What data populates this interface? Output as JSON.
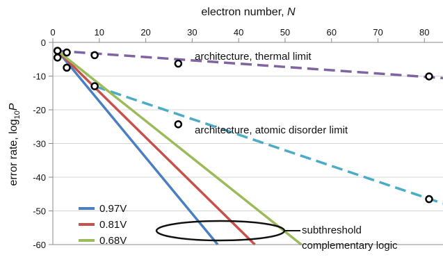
{
  "chart_data": {
    "type": "line",
    "xlabel_text": "electron number, ",
    "xlabel_var": "N",
    "ylabel_text": "error rate, log",
    "ylabel_sub": "10",
    "ylabel_var": "P",
    "xlim": [
      0,
      84
    ],
    "ylim": [
      -60,
      0
    ],
    "x_ticks": [
      0,
      10,
      20,
      30,
      40,
      50,
      60,
      70,
      80
    ],
    "y_ticks": [
      0,
      -10,
      -20,
      -30,
      -40,
      -50,
      -60
    ],
    "grid": "horizontal",
    "legend_position": "bottom-left",
    "series": [
      {
        "name": "0.97V",
        "color": "#4a7fc1",
        "style": "solid",
        "x": [
          1,
          35.5
        ],
        "y": [
          -2.5,
          -60
        ]
      },
      {
        "name": "0.81V",
        "color": "#c8504a",
        "style": "solid",
        "x": [
          1,
          43.5
        ],
        "y": [
          -2.5,
          -60
        ]
      },
      {
        "name": "0.68V",
        "color": "#9bbb59",
        "style": "solid",
        "x": [
          1,
          53.5
        ],
        "y": [
          -2.5,
          -60
        ]
      }
    ],
    "limits": [
      {
        "label": "architecture, thermal limit",
        "color": "#8064a2",
        "style": "dashed",
        "x": [
          1,
          84
        ],
        "y": [
          -2.5,
          -10.6
        ]
      },
      {
        "label": "architecture, atomic disorder limit",
        "color": "#4bacc6",
        "style": "dashed",
        "x": [
          9,
          84
        ],
        "y": [
          -13,
          -47.8
        ]
      }
    ],
    "markers": {
      "style": "open-circle",
      "points": [
        {
          "x": 1,
          "y": -2.5
        },
        {
          "x": 1,
          "y": -4.5
        },
        {
          "x": 3,
          "y": -7.5
        },
        {
          "x": 3,
          "y": -3
        },
        {
          "x": 9,
          "y": -3.8
        },
        {
          "x": 9,
          "y": -13
        },
        {
          "x": 27,
          "y": -6.3
        },
        {
          "x": 27,
          "y": -24.3
        },
        {
          "x": 81,
          "y": -10.1
        },
        {
          "x": 81,
          "y": -46.5
        }
      ]
    },
    "annotation": {
      "line1": "subthreshold",
      "line2": "complementary logic"
    }
  }
}
